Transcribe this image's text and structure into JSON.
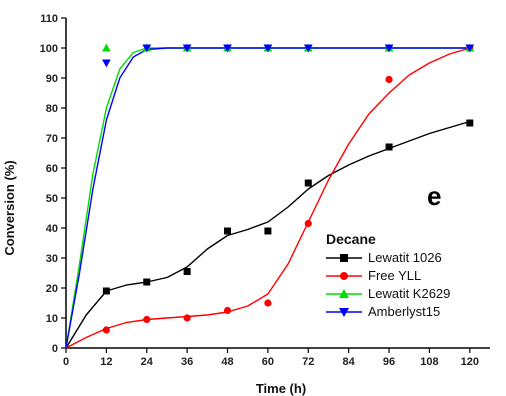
{
  "chart_data": {
    "type": "line",
    "xlabel": "Time (h)",
    "ylabel": "Conversion (%)",
    "xlim": [
      0,
      126
    ],
    "ylim": [
      0,
      110
    ],
    "x_ticks": [
      0,
      12,
      24,
      36,
      48,
      60,
      72,
      84,
      96,
      108,
      120
    ],
    "y_ticks": [
      0,
      10,
      20,
      30,
      40,
      50,
      60,
      70,
      80,
      90,
      100,
      110
    ],
    "panel_label": "e",
    "legend": {
      "title": "Decane",
      "placement": "bottom-right"
    },
    "series": [
      {
        "name": "Lewatit 1026",
        "color": "#000000",
        "marker": "square",
        "points": [
          [
            12,
            19
          ],
          [
            24,
            22
          ],
          [
            36,
            25.5
          ],
          [
            48,
            39
          ],
          [
            60,
            39
          ],
          [
            72,
            55
          ],
          [
            96,
            67
          ],
          [
            120,
            75
          ]
        ],
        "curve": [
          [
            0,
            0
          ],
          [
            6,
            11
          ],
          [
            12,
            19
          ],
          [
            18,
            21
          ],
          [
            24,
            22
          ],
          [
            30,
            23.5
          ],
          [
            36,
            27
          ],
          [
            42,
            33
          ],
          [
            48,
            37.5
          ],
          [
            54,
            39.5
          ],
          [
            60,
            42
          ],
          [
            66,
            47
          ],
          [
            72,
            53
          ],
          [
            78,
            57.5
          ],
          [
            84,
            61
          ],
          [
            90,
            64
          ],
          [
            96,
            66.5
          ],
          [
            102,
            69
          ],
          [
            108,
            71.5
          ],
          [
            114,
            73.5
          ],
          [
            120,
            75.5
          ]
        ]
      },
      {
        "name": "Free YLL",
        "color": "#ff0000",
        "marker": "circle",
        "points": [
          [
            12,
            6
          ],
          [
            24,
            9.5
          ],
          [
            36,
            10
          ],
          [
            48,
            12.5
          ],
          [
            60,
            15
          ],
          [
            72,
            41.5
          ],
          [
            96,
            89.5
          ],
          [
            120,
            100
          ]
        ],
        "curve": [
          [
            0,
            0
          ],
          [
            6,
            3.5
          ],
          [
            12,
            6.5
          ],
          [
            18,
            8.5
          ],
          [
            24,
            9.5
          ],
          [
            30,
            10
          ],
          [
            36,
            10.5
          ],
          [
            42,
            11
          ],
          [
            48,
            12
          ],
          [
            54,
            14
          ],
          [
            60,
            18
          ],
          [
            66,
            28
          ],
          [
            72,
            42
          ],
          [
            78,
            56
          ],
          [
            84,
            68
          ],
          [
            90,
            78
          ],
          [
            96,
            85
          ],
          [
            102,
            91
          ],
          [
            108,
            95
          ],
          [
            114,
            98
          ],
          [
            120,
            100
          ]
        ]
      },
      {
        "name": "Lewatit K2629",
        "color": "#00dd00",
        "marker": "triangle-up",
        "points": [
          [
            12,
            100
          ],
          [
            24,
            100
          ],
          [
            36,
            100
          ],
          [
            48,
            100
          ],
          [
            60,
            100
          ],
          [
            72,
            100
          ],
          [
            96,
            100
          ],
          [
            120,
            100
          ]
        ],
        "curve": [
          [
            0,
            0
          ],
          [
            4,
            28
          ],
          [
            8,
            58
          ],
          [
            12,
            80
          ],
          [
            16,
            93
          ],
          [
            20,
            98.5
          ],
          [
            24,
            100
          ],
          [
            30,
            100
          ],
          [
            36,
            100
          ],
          [
            48,
            100
          ],
          [
            60,
            100
          ],
          [
            72,
            100
          ],
          [
            84,
            100
          ],
          [
            96,
            100
          ],
          [
            108,
            100
          ],
          [
            120,
            100
          ]
        ]
      },
      {
        "name": "Amberlyst15",
        "color": "#0000ff",
        "marker": "triangle-down",
        "points": [
          [
            12,
            95
          ],
          [
            24,
            100
          ],
          [
            36,
            100
          ],
          [
            48,
            100
          ],
          [
            60,
            100
          ],
          [
            72,
            100
          ],
          [
            96,
            100
          ],
          [
            120,
            100
          ]
        ],
        "curve": [
          [
            0,
            0
          ],
          [
            4,
            25
          ],
          [
            8,
            53
          ],
          [
            12,
            76
          ],
          [
            16,
            90
          ],
          [
            20,
            97
          ],
          [
            24,
            99.5
          ],
          [
            30,
            100
          ],
          [
            36,
            100
          ],
          [
            48,
            100
          ],
          [
            60,
            100
          ],
          [
            72,
            100
          ],
          [
            84,
            100
          ],
          [
            96,
            100
          ],
          [
            108,
            100
          ],
          [
            120,
            100
          ]
        ]
      }
    ]
  }
}
